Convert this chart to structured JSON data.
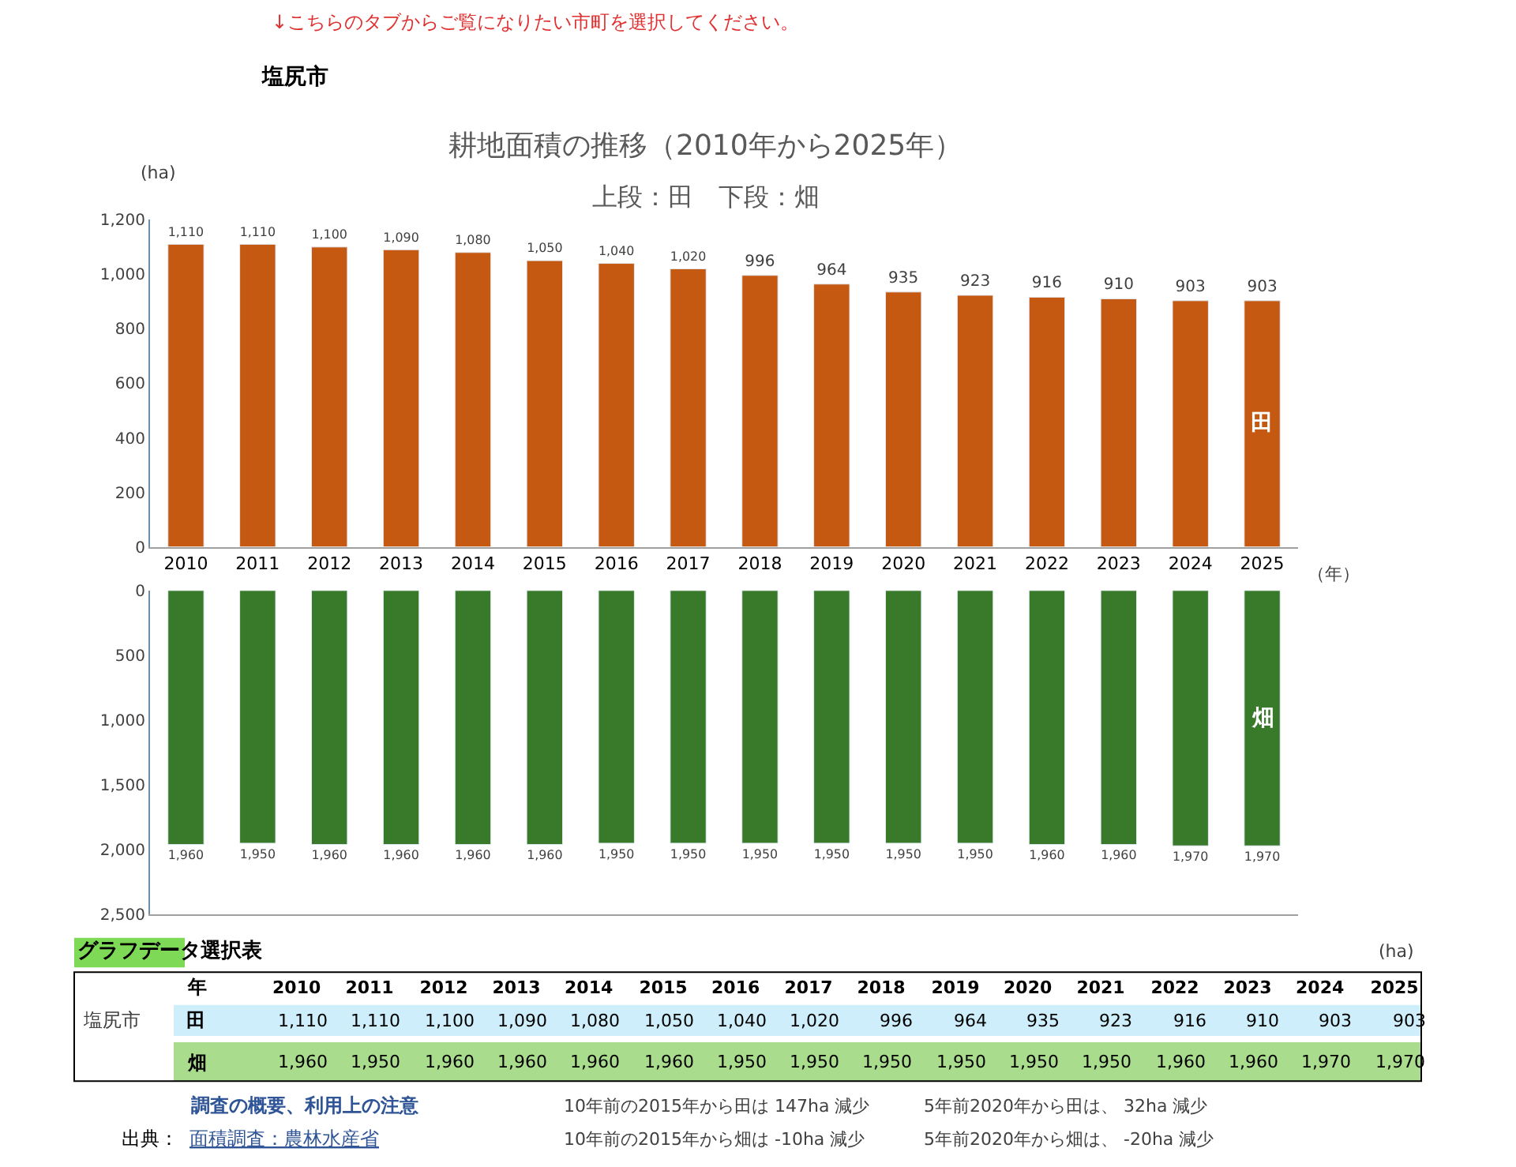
{
  "chart_data": [
    {
      "type": "bar",
      "title": "耕地面積の推移（2010年から2025年）",
      "subtitle": "上段：田　下段：畑",
      "ylabel": "(ha)",
      "xlabel": "（年）",
      "categories": [
        "2010",
        "2011",
        "2012",
        "2013",
        "2014",
        "2015",
        "2016",
        "2017",
        "2018",
        "2019",
        "2020",
        "2021",
        "2022",
        "2023",
        "2024",
        "2025"
      ],
      "series": [
        {
          "name": "田",
          "color": "#c65911",
          "values": [
            1110,
            1110,
            1100,
            1090,
            1080,
            1050,
            1040,
            1020,
            996,
            964,
            935,
            923,
            916,
            910,
            903,
            903
          ],
          "value_labels": [
            "1,110",
            "1,110",
            "1,100",
            "1,090",
            "1,080",
            "1,050",
            "1,040",
            "1,020",
            "996",
            "964",
            "935",
            "923",
            "916",
            "910",
            "903",
            "903"
          ]
        }
      ],
      "ylim": [
        0,
        1200
      ],
      "yticks": [
        0,
        200,
        400,
        600,
        800,
        {
          "value": 1000,
          "label": "1,000"
        },
        {
          "value": 1200,
          "label": "1,200"
        }
      ],
      "grid": false,
      "legend": false,
      "annotations": [
        "↓こちらのタブからご覧になりたい市町を選択してください。",
        "塩尻市"
      ]
    },
    {
      "type": "bar",
      "categories": [
        "2010",
        "2011",
        "2012",
        "2013",
        "2014",
        "2015",
        "2016",
        "2017",
        "2018",
        "2019",
        "2020",
        "2021",
        "2022",
        "2023",
        "2024",
        "2025"
      ],
      "series": [
        {
          "name": "畑",
          "color": "#38792a",
          "values": [
            1960,
            1950,
            1960,
            1960,
            1960,
            1960,
            1950,
            1950,
            1950,
            1950,
            1950,
            1950,
            1960,
            1960,
            1970,
            1970
          ],
          "value_labels": [
            "1,960",
            "1,950",
            "1,960",
            "1,960",
            "1,960",
            "1,960",
            "1,950",
            "1,950",
            "1,950",
            "1,950",
            "1,950",
            "1,950",
            "1,960",
            "1,960",
            "1,970",
            "1,970"
          ]
        }
      ],
      "ylim": [
        2500,
        0
      ],
      "yticks": [
        0,
        500,
        {
          "value": 1000,
          "label": "1,000"
        },
        {
          "value": 1500,
          "label": "1,500"
        },
        {
          "value": 2000,
          "label": "2,000"
        },
        {
          "value": 2500,
          "label": "2,500"
        }
      ],
      "tick_labels": "y",
      "grid": false,
      "legend": false,
      "annotations": [
        "グラフデータ選択表",
        "(ha)",
        "塩尻市",
        "年",
        "調査の概要、利用上の注意",
        "出典：",
        "面積調査：農林水産省",
        "10年前の2015年から田は 147ha 減少",
        "5年前2020年から田は、 32ha 減少",
        "10年前の2015年から畑は -10ha 減少",
        "5年前2020年から畑は、 -20ha 減少"
      ]
    }
  ]
}
